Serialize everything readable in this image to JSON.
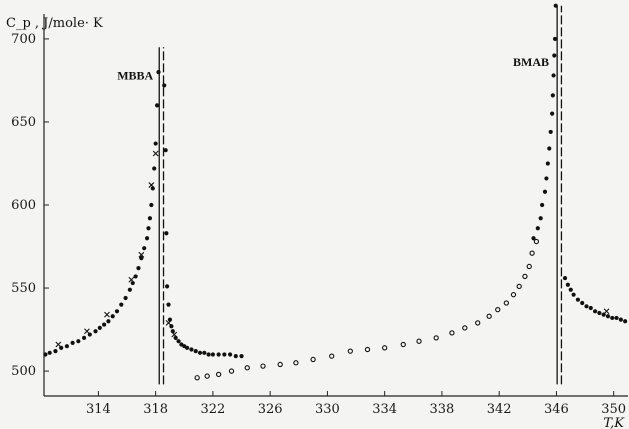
{
  "chart_data": {
    "type": "scatter",
    "title": "",
    "ylabel": "C_p , J/mole· K",
    "xlabel": "T,K",
    "xlim": [
      310.2,
      351
    ],
    "ylim": [
      485,
      715
    ],
    "x_ticks": [
      314,
      318,
      322,
      326,
      330,
      334,
      338,
      342,
      346,
      350
    ],
    "x_tick_labels": [
      "314",
      "318",
      "322",
      "326",
      "330",
      "334",
      "338",
      "342",
      "346",
      "350"
    ],
    "y_ticks": [
      500,
      550,
      600,
      650,
      700
    ],
    "y_tick_labels": [
      "500",
      "550",
      "600",
      "650",
      "700"
    ],
    "annotations": [
      {
        "text": "MBBA",
        "x": 318.25,
        "y": 678
      },
      {
        "text": "BMAB",
        "x": 345.9,
        "y": 686
      }
    ],
    "transition_lines": [
      {
        "x": 318.25,
        "style": "solid",
        "ymin": 492,
        "ymax": 695
      },
      {
        "x": 318.55,
        "style": "dashed",
        "ymin": 492,
        "ymax": 695
      },
      {
        "x": 346.05,
        "style": "solid",
        "ymin": 492,
        "ymax": 720
      },
      {
        "x": 346.35,
        "style": "dashed",
        "ymin": 492,
        "ymax": 720
      }
    ],
    "series": [
      {
        "marker": "dot",
        "points": [
          [
            310.3,
            510
          ],
          [
            310.6,
            511
          ],
          [
            311.0,
            512
          ],
          [
            311.4,
            514
          ],
          [
            311.8,
            515
          ],
          [
            312.2,
            517
          ],
          [
            312.6,
            518
          ],
          [
            313.0,
            520
          ],
          [
            313.4,
            522
          ],
          [
            313.8,
            524
          ],
          [
            314.1,
            526
          ],
          [
            314.4,
            528
          ],
          [
            314.7,
            530
          ],
          [
            315.0,
            533
          ],
          [
            315.3,
            536
          ],
          [
            315.6,
            540
          ],
          [
            315.9,
            544
          ],
          [
            316.2,
            549
          ],
          [
            316.4,
            553
          ],
          [
            316.6,
            557
          ],
          [
            316.8,
            562
          ],
          [
            317.0,
            568
          ],
          [
            317.2,
            574
          ],
          [
            317.4,
            580
          ],
          [
            317.5,
            586
          ],
          [
            317.6,
            592
          ],
          [
            317.7,
            600
          ],
          [
            317.8,
            610
          ],
          [
            317.9,
            622
          ],
          [
            318.0,
            637
          ],
          [
            318.1,
            660
          ],
          [
            318.2,
            680
          ],
          [
            318.6,
            672
          ],
          [
            318.7,
            633
          ],
          [
            318.75,
            583
          ],
          [
            318.8,
            551
          ],
          [
            318.9,
            540
          ],
          [
            319.0,
            531
          ],
          [
            319.1,
            527
          ],
          [
            319.2,
            524
          ],
          [
            319.4,
            520
          ],
          [
            319.6,
            518
          ],
          [
            319.8,
            516
          ],
          [
            320.0,
            515
          ],
          [
            320.2,
            514
          ],
          [
            320.5,
            513
          ],
          [
            320.8,
            512
          ],
          [
            321.1,
            511
          ],
          [
            321.4,
            511
          ],
          [
            321.7,
            510
          ],
          [
            322.0,
            510
          ],
          [
            322.4,
            510
          ],
          [
            322.8,
            510
          ],
          [
            323.2,
            510
          ],
          [
            323.6,
            509
          ],
          [
            324.0,
            509
          ],
          [
            344.4,
            580
          ],
          [
            344.7,
            586
          ],
          [
            344.9,
            592
          ],
          [
            345.0,
            600
          ],
          [
            345.2,
            608
          ],
          [
            345.3,
            616
          ],
          [
            345.4,
            625
          ],
          [
            345.5,
            634
          ],
          [
            345.6,
            644
          ],
          [
            345.7,
            655
          ],
          [
            345.75,
            666
          ],
          [
            345.8,
            678
          ],
          [
            345.85,
            690
          ],
          [
            345.9,
            700
          ],
          [
            345.95,
            720
          ],
          [
            346.6,
            556
          ],
          [
            346.8,
            552
          ],
          [
            347.0,
            549
          ],
          [
            347.2,
            546
          ],
          [
            347.5,
            543
          ],
          [
            347.8,
            541
          ],
          [
            348.1,
            539
          ],
          [
            348.4,
            538
          ],
          [
            348.7,
            536
          ],
          [
            349.0,
            535
          ],
          [
            349.3,
            534
          ],
          [
            349.6,
            533
          ],
          [
            349.9,
            532
          ],
          [
            350.2,
            532
          ],
          [
            350.5,
            531
          ],
          [
            350.8,
            530
          ]
        ]
      },
      {
        "marker": "cross",
        "points": [
          [
            311.2,
            516
          ],
          [
            313.2,
            524
          ],
          [
            314.6,
            534
          ],
          [
            316.3,
            555
          ],
          [
            317.0,
            570
          ],
          [
            317.7,
            612
          ],
          [
            318.0,
            631
          ],
          [
            318.9,
            529
          ],
          [
            319.3,
            522
          ],
          [
            349.5,
            536
          ]
        ]
      },
      {
        "marker": "open-circle",
        "points": [
          [
            320.9,
            496
          ],
          [
            321.6,
            497
          ],
          [
            322.4,
            498
          ],
          [
            323.3,
            500
          ],
          [
            324.4,
            502
          ],
          [
            325.5,
            503
          ],
          [
            326.7,
            504
          ],
          [
            327.8,
            505
          ],
          [
            329.0,
            507
          ],
          [
            330.3,
            509
          ],
          [
            331.6,
            512
          ],
          [
            332.8,
            513
          ],
          [
            334.0,
            514
          ],
          [
            335.3,
            516
          ],
          [
            336.4,
            518
          ],
          [
            337.6,
            520
          ],
          [
            338.7,
            523
          ],
          [
            339.6,
            526
          ],
          [
            340.5,
            529
          ],
          [
            341.3,
            533
          ],
          [
            341.9,
            537
          ],
          [
            342.5,
            541
          ],
          [
            343.0,
            546
          ],
          [
            343.4,
            551
          ],
          [
            343.8,
            557
          ],
          [
            344.1,
            563
          ],
          [
            344.3,
            571
          ],
          [
            344.6,
            578
          ]
        ]
      }
    ]
  }
}
